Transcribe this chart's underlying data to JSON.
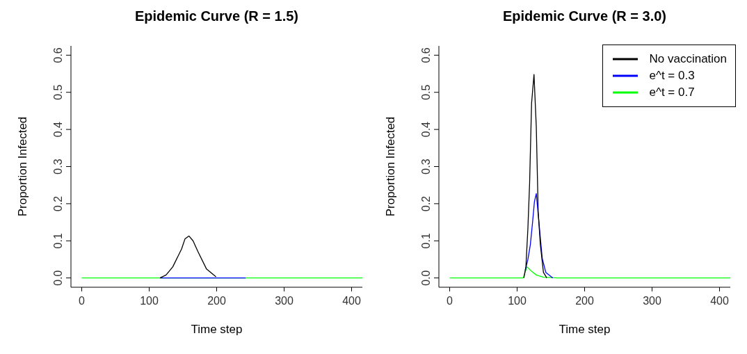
{
  "chart_data": [
    {
      "type": "line",
      "title": "Epidemic Curve (R = 1.5)",
      "xlabel": "Time step",
      "ylabel": "Proportion Infected",
      "xlim": [
        -16,
        416
      ],
      "ylim": [
        -0.025,
        0.625
      ],
      "xticks": [
        0,
        100,
        200,
        300,
        400
      ],
      "yticks": [
        {
          "value": 0,
          "label": "0.0"
        },
        {
          "value": 0.1,
          "label": "0.1"
        },
        {
          "value": 0.2,
          "label": "0.2"
        },
        {
          "value": 0.3,
          "label": "0.3"
        },
        {
          "value": 0.4,
          "label": "0.4"
        },
        {
          "value": 0.5,
          "label": "0.5"
        },
        {
          "value": 0.6,
          "label": "0.6"
        }
      ],
      "legend": false,
      "series": [
        {
          "color": "#000000",
          "x": [
            116,
            125,
            135,
            148,
            153,
            159,
            165,
            172,
            185,
            199
          ],
          "values": [
            0,
            0.008,
            0.03,
            0.078,
            0.105,
            0.113,
            0.1,
            0.072,
            0.024,
            0.003
          ]
        },
        {
          "color": "#0000ff",
          "x": [
            116,
            243
          ],
          "values": [
            0,
            0
          ]
        },
        {
          "color": "#00ff00",
          "x": [
            0,
            416
          ],
          "values": [
            0,
            0
          ]
        }
      ]
    },
    {
      "type": "line",
      "title": "Epidemic Curve (R = 3.0)",
      "xlabel": "Time step",
      "ylabel": "Proportion Infected",
      "xlim": [
        -16,
        416
      ],
      "ylim": [
        -0.025,
        0.625
      ],
      "xticks": [
        0,
        100,
        200,
        300,
        400
      ],
      "yticks": [
        {
          "value": 0,
          "label": "0.0"
        },
        {
          "value": 0.1,
          "label": "0.1"
        },
        {
          "value": 0.2,
          "label": "0.2"
        },
        {
          "value": 0.3,
          "label": "0.3"
        },
        {
          "value": 0.4,
          "label": "0.4"
        },
        {
          "value": 0.5,
          "label": "0.5"
        },
        {
          "value": 0.6,
          "label": "0.6"
        }
      ],
      "legend": "top right",
      "series": [
        {
          "name": "No vaccination",
          "color": "#000000",
          "x": [
            110,
            113,
            116,
            118.5,
            121.4,
            125,
            128.4,
            131.2,
            134.4,
            139,
            144
          ],
          "values": [
            0,
            0.03,
            0.135,
            0.255,
            0.47,
            0.548,
            0.407,
            0.179,
            0.09,
            0.015,
            0
          ]
        },
        {
          "name": "e^t = 0.3",
          "color": "#0000ff",
          "x": [
            112,
            116,
            119.6,
            123.1,
            125.6,
            128.4,
            133.7,
            137.2,
            142.5,
            153
          ],
          "values": [
            0.02,
            0.05,
            0.09,
            0.154,
            0.205,
            0.227,
            0.122,
            0.053,
            0.015,
            0
          ]
        },
        {
          "name": "e^t = 0.7",
          "color": "#00ff00",
          "x": [
            0,
            109,
            114.6,
            121.4,
            128.4,
            139,
            160,
            416
          ],
          "values": [
            0,
            0,
            0.03,
            0.018,
            0.008,
            0.002,
            0,
            0
          ]
        }
      ]
    }
  ]
}
